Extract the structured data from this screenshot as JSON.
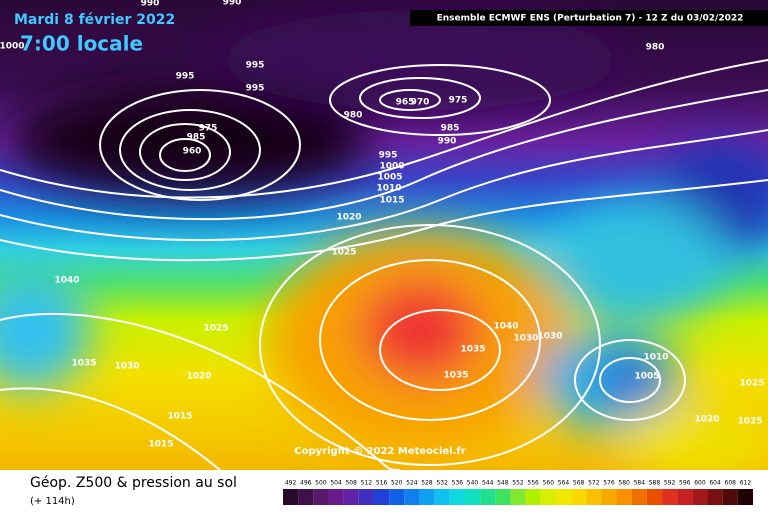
{
  "header": {
    "date": "Mardi 8 février 2022",
    "time": "7:00 locale",
    "run": "Ensemble ECMWF ENS  (Perturbation 7)  -  12 Z du 03/02/2022"
  },
  "copyright": "Copyright © 2022 Meteociel.fr",
  "footer": {
    "title": "Géop. Z500 & pression au sol",
    "lead": "(+ 114h)"
  },
  "isobar_labels": [
    990,
    990,
    1000,
    995,
    995,
    995,
    980,
    965,
    970,
    975,
    980,
    975,
    985,
    960,
    985,
    990,
    995,
    1000,
    1005,
    1010,
    1015,
    1020,
    1025,
    1040,
    1025,
    1040,
    1030,
    1030,
    1035,
    1035,
    1030,
    1010,
    1035,
    1020,
    1005,
    1025,
    1015,
    1020,
    1025,
    1015
  ],
  "legend_values": [
    492,
    496,
    500,
    504,
    508,
    512,
    516,
    520,
    524,
    528,
    532,
    536,
    540,
    544,
    548,
    552,
    556,
    560,
    564,
    568,
    572,
    576,
    580,
    584,
    588,
    592,
    596,
    600,
    604,
    608,
    612
  ]
}
